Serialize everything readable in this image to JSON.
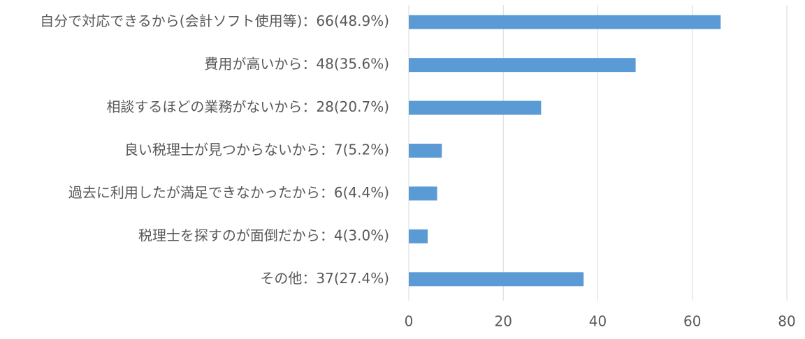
{
  "chart_data": {
    "type": "bar",
    "orientation": "horizontal",
    "categories": [
      "自分で対応できるから(会計ソフト使用等)：66(48.9%)",
      "費用が高いから：48(35.6%)",
      "相談するほどの業務がないから：28(20.7%)",
      "良い税理士が見つからないから：7(5.2%)",
      "過去に利用したが満足できなかったから：6(4.4%)",
      "税理士を探すのが面倒だから：4(3.0%)",
      "その他：37(27.4%)"
    ],
    "values": [
      66,
      48,
      28,
      7,
      6,
      4,
      37
    ],
    "color": "#5b9bd5",
    "xlim": [
      0,
      80
    ],
    "xticks": [
      0,
      20,
      40,
      60,
      80
    ],
    "grid": true
  }
}
